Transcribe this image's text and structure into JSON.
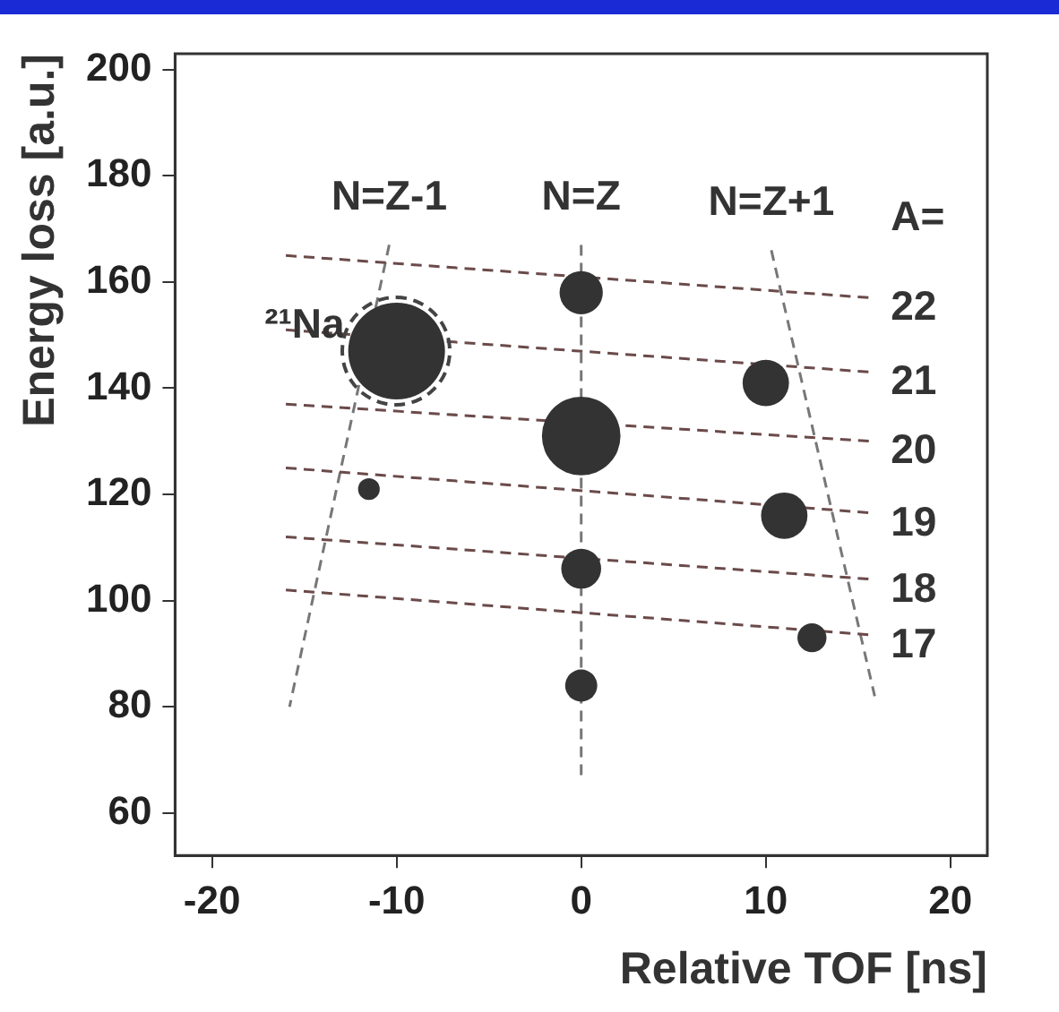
{
  "chart_data": {
    "type": "bubble",
    "xlabel": "Relative TOF [ns]",
    "ylabel": "Energy loss [a.u.]",
    "xlim": [
      -22,
      22
    ],
    "xticks": [
      -20,
      -10,
      0,
      10,
      20
    ],
    "ylim": [
      52,
      203
    ],
    "yticks": [
      60,
      80,
      100,
      120,
      140,
      160,
      180,
      200
    ],
    "grid": false,
    "legend": false,
    "series": [
      {
        "color": "#333333",
        "x": [
          -10,
          0,
          0,
          10,
          11,
          0,
          0,
          12.5,
          -11.5
        ],
        "values": [
          147,
          131,
          158,
          141,
          116,
          106,
          84,
          93,
          121
        ],
        "sizes": [
          1,
          0.66,
          0.2,
          0.23,
          0.23,
          0.17,
          0.11,
          0.09,
          0.05
        ]
      },
      {
        "type": "line",
        "color": "#6b4a4a",
        "line_style": "dashed",
        "marker": "none",
        "x": [
          -16,
          15.8
        ],
        "values": [
          165,
          157
        ]
      },
      {
        "type": "line",
        "color": "#6b4a4a",
        "line_style": "dashed",
        "marker": "none",
        "x": [
          -16,
          15.8
        ],
        "values": [
          151,
          143
        ]
      },
      {
        "type": "line",
        "color": "#6b4a4a",
        "line_style": "dashed",
        "marker": "none",
        "x": [
          -16,
          15.8
        ],
        "values": [
          137,
          130
        ]
      },
      {
        "type": "line",
        "color": "#6b4a4a",
        "line_style": "dashed",
        "marker": "none",
        "x": [
          -16,
          15.8
        ],
        "values": [
          125,
          116.5
        ]
      },
      {
        "type": "line",
        "color": "#6b4a4a",
        "line_style": "dashed",
        "marker": "none",
        "x": [
          -16,
          15.8
        ],
        "values": [
          112,
          104
        ]
      },
      {
        "type": "line",
        "color": "#6b4a4a",
        "line_style": "dashed",
        "marker": "none",
        "x": [
          -16,
          15.8
        ],
        "values": [
          102,
          93.5
        ]
      },
      {
        "type": "line",
        "color": "#777777",
        "line_style": "dashed",
        "marker": "none",
        "x": [
          -10.4,
          -15.8
        ],
        "values": [
          167,
          80
        ]
      },
      {
        "type": "line",
        "color": "#777777",
        "line_style": "dashed",
        "marker": "none",
        "x": [
          0,
          0
        ],
        "values": [
          167,
          67
        ]
      },
      {
        "type": "line",
        "color": "#777777",
        "line_style": "dashed",
        "marker": "none",
        "x": [
          10.3,
          15.9
        ],
        "values": [
          166,
          82
        ]
      }
    ],
    "annotations": [
      "N=Z-1",
      "N=Z",
      "N=Z+1",
      "A=",
      "22",
      "21",
      "20",
      "19",
      "18",
      "17",
      {
        "text": "²¹Na",
        "x": -10,
        "y": 147
      }
    ]
  }
}
